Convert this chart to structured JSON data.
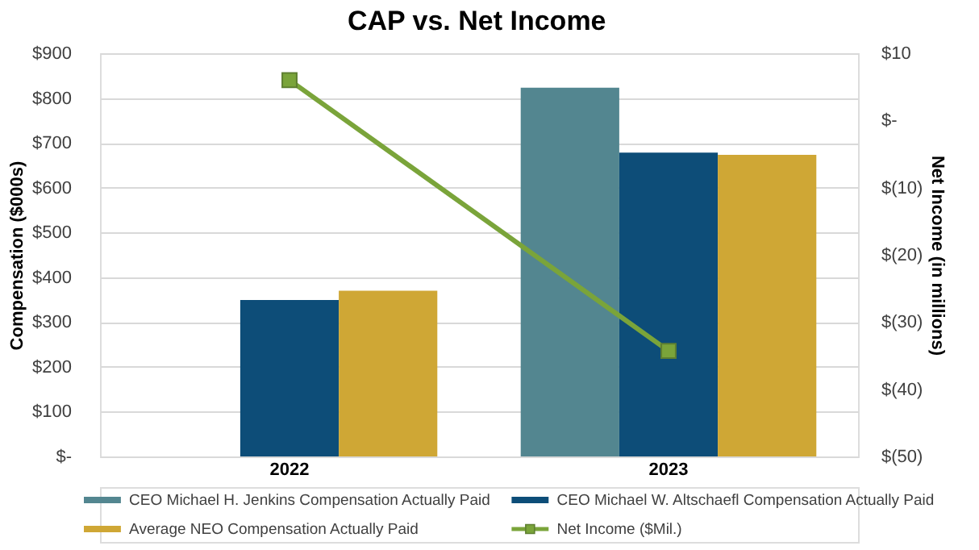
{
  "chart_data": {
    "type": "bar",
    "title": "CAP vs. Net Income",
    "ylabel": "Compensation ($000s)",
    "y2label": "Net Income (in millions)",
    "categories": [
      "2022",
      "2023"
    ],
    "series": [
      {
        "name": "CEO Michael H. Jenkins Compensation Actually Paid",
        "color": "#538690",
        "values": [
          null,
          823
        ]
      },
      {
        "name": "CEO Michael W. Altschaefl Compensation Actually Paid",
        "color": "#0d4d78",
        "values": [
          349,
          678
        ]
      },
      {
        "name": "Average NEO Compensation Actually Paid",
        "color": "#cfa735",
        "values": [
          370,
          673
        ]
      },
      {
        "name": "Net Income ($Mil.)",
        "color": "#7aa43a",
        "type": "line",
        "axis": "y2",
        "marker": "square",
        "values": [
          6.0,
          -34.3
        ]
      }
    ],
    "ylim": [
      0,
      900
    ],
    "yticks": [
      {
        "value": 0,
        "label": "$-"
      },
      {
        "value": 100,
        "label": "$100"
      },
      {
        "value": 200,
        "label": "$200"
      },
      {
        "value": 300,
        "label": "$300"
      },
      {
        "value": 400,
        "label": "$400"
      },
      {
        "value": 500,
        "label": "$500"
      },
      {
        "value": 600,
        "label": "$600"
      },
      {
        "value": 700,
        "label": "$700"
      },
      {
        "value": 800,
        "label": "$800"
      },
      {
        "value": 900,
        "label": "$900"
      }
    ],
    "y2lim": [
      -50,
      10
    ],
    "y2ticks": [
      {
        "value": 10,
        "label": "$10"
      },
      {
        "value": 0,
        "label": "$-"
      },
      {
        "value": -10,
        "label": "$(10)"
      },
      {
        "value": -20,
        "label": "$(20)"
      },
      {
        "value": -30,
        "label": "$(30)"
      },
      {
        "value": -40,
        "label": "$(40)"
      },
      {
        "value": -50,
        "label": "$(50)"
      }
    ],
    "grid": "y",
    "legend": "bottom"
  }
}
